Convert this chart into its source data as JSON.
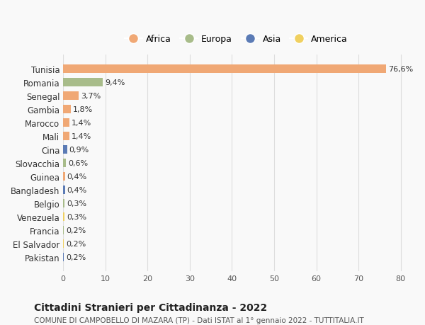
{
  "categories": [
    "Tunisia",
    "Romania",
    "Senegal",
    "Gambia",
    "Marocco",
    "Mali",
    "Cina",
    "Slovacchia",
    "Guinea",
    "Bangladesh",
    "Belgio",
    "Venezuela",
    "Francia",
    "El Salvador",
    "Pakistan"
  ],
  "values": [
    76.6,
    9.4,
    3.7,
    1.8,
    1.4,
    1.4,
    0.9,
    0.6,
    0.4,
    0.4,
    0.3,
    0.3,
    0.2,
    0.2,
    0.2
  ],
  "labels": [
    "76,6%",
    "9,4%",
    "3,7%",
    "1,8%",
    "1,4%",
    "1,4%",
    "0,9%",
    "0,6%",
    "0,4%",
    "0,4%",
    "0,3%",
    "0,3%",
    "0,2%",
    "0,2%",
    "0,2%"
  ],
  "continents": [
    "Africa",
    "Europa",
    "Africa",
    "Africa",
    "Africa",
    "Africa",
    "Asia",
    "Europa",
    "Africa",
    "Asia",
    "Europa",
    "America",
    "Europa",
    "America",
    "Asia"
  ],
  "continent_colors": {
    "Africa": "#F0A875",
    "Europa": "#A8BC8A",
    "Asia": "#5B7BB5",
    "America": "#F0D060"
  },
  "legend_order": [
    "Africa",
    "Europa",
    "Asia",
    "America"
  ],
  "xlim": [
    0,
    82
  ],
  "xticks": [
    0,
    10,
    20,
    30,
    40,
    50,
    60,
    70,
    80
  ],
  "title": "Cittadini Stranieri per Cittadinanza - 2022",
  "subtitle": "COMUNE DI CAMPOBELLO DI MAZARA (TP) - Dati ISTAT al 1° gennaio 2022 - TUTTITALIA.IT",
  "background_color": "#f9f9f9",
  "grid_color": "#dddddd",
  "bar_height": 0.65
}
